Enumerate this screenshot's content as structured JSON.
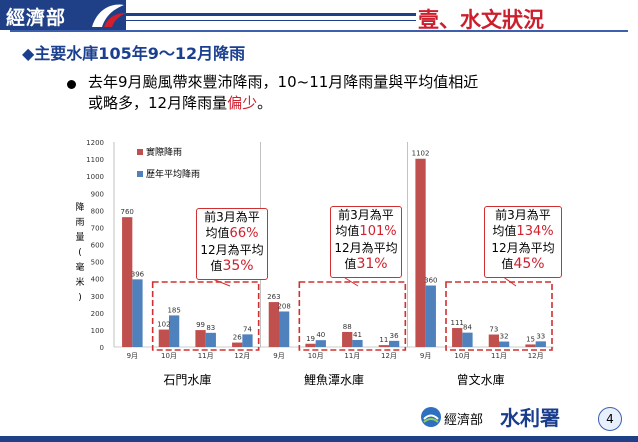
{
  "header": {
    "logo_text": "經濟部",
    "title": "壹、水文狀況"
  },
  "subtitle": "◆主要水庫105年9～12月降雨",
  "bullet": {
    "line1": "去年9月颱風帶來豐沛降雨，10~11月降雨量與平均值相近",
    "line2_pre": "或略多，12月降雨量",
    "line2_hl": "偏少",
    "line2_post": "。"
  },
  "callouts": [
    {
      "l1": "前3月為平",
      "l2a": "均值",
      "l2b": "66%",
      "l3": "12月為平均",
      "l4a": "值",
      "l4b": "35%"
    },
    {
      "l1": "前3月為平",
      "l2a": "均值",
      "l2b": "101%",
      "l3": "12月為平均",
      "l4a": "值",
      "l4b": "31%"
    },
    {
      "l1": "前3月為平",
      "l2a": "均值",
      "l2b": "134%",
      "l3": "12月為平均",
      "l4a": "值",
      "l4b": "45%"
    }
  ],
  "footer": {
    "org": "經濟部",
    "logo": "水利署",
    "page": "4"
  },
  "chart_data": {
    "type": "bar",
    "ylabel": "降雨量(毫米)",
    "ylim": [
      0,
      1200
    ],
    "yticks": [
      0,
      100,
      200,
      300,
      400,
      500,
      600,
      700,
      800,
      900,
      1000,
      1100,
      1200
    ],
    "grid": false,
    "legend_position": "top-left",
    "groups": [
      {
        "name": "石門水庫",
        "categories": [
          "9月",
          "10月",
          "11月",
          "12月"
        ]
      },
      {
        "name": "鯉魚潭水庫",
        "categories": [
          "9月",
          "10月",
          "11月",
          "12月"
        ]
      },
      {
        "name": "曾文水庫",
        "categories": [
          "9月",
          "10月",
          "11月",
          "12月"
        ]
      }
    ],
    "series": [
      {
        "name": "實際降雨",
        "color": "#c0504d",
        "values": [
          760,
          102,
          99,
          26,
          263,
          19,
          88,
          11,
          1102,
          111,
          73,
          15
        ]
      },
      {
        "name": "歷年平均降雨",
        "color": "#4f81bd",
        "values": [
          396,
          185,
          83,
          74,
          208,
          40,
          41,
          36,
          360,
          84,
          32,
          33
        ]
      }
    ]
  }
}
